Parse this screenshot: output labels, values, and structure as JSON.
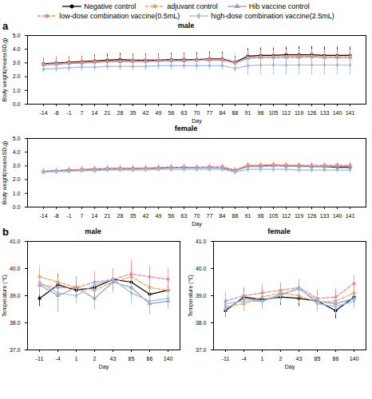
{
  "chart_data": [
    {
      "type": "line",
      "annotation": "a",
      "title": "male",
      "x_label": "Day",
      "y_label": "Body weight(mean±SD,g)",
      "categories": [
        "-14",
        "-8",
        "-1",
        "7",
        "14",
        "21",
        "28",
        "35",
        "42",
        "49",
        "56",
        "63",
        "70",
        "77",
        "84",
        "88",
        "91",
        "98",
        "105",
        "112",
        "119",
        "126",
        "133",
        "140",
        "141"
      ],
      "ylim": [
        0,
        5
      ],
      "yticks": [
        0,
        1,
        2,
        3,
        4,
        5
      ],
      "series": [
        {
          "name": "Negative control",
          "color": "#000000",
          "marker": "circle",
          "line_style": "solid",
          "values": [
            2.95,
            3.0,
            3.05,
            3.1,
            3.15,
            3.2,
            3.25,
            3.2,
            3.2,
            3.2,
            3.25,
            3.25,
            3.25,
            3.3,
            3.3,
            3.05,
            3.5,
            3.55,
            3.55,
            3.6,
            3.6,
            3.6,
            3.55,
            3.55,
            3.55
          ],
          "errors": [
            0.4,
            0.4,
            0.4,
            0.4,
            0.45,
            0.45,
            0.45,
            0.45,
            0.45,
            0.45,
            0.45,
            0.45,
            0.5,
            0.5,
            0.5,
            0.45,
            0.55,
            0.55,
            0.55,
            0.55,
            0.6,
            0.6,
            0.6,
            0.6,
            0.6
          ]
        },
        {
          "name": "adjuvant control",
          "color": "#f5a04b",
          "marker": "square",
          "line_style": "dashed",
          "values": [
            2.9,
            2.95,
            3.0,
            3.05,
            3.1,
            3.1,
            3.15,
            3.15,
            3.15,
            3.15,
            3.2,
            3.2,
            3.2,
            3.25,
            3.25,
            3.0,
            3.4,
            3.45,
            3.45,
            3.45,
            3.5,
            3.5,
            3.45,
            3.45,
            3.45
          ],
          "errors": [
            0.4,
            0.4,
            0.4,
            0.4,
            0.4,
            0.4,
            0.4,
            0.4,
            0.4,
            0.4,
            0.4,
            0.4,
            0.4,
            0.4,
            0.4,
            0.4,
            0.5,
            0.5,
            0.5,
            0.5,
            0.5,
            0.5,
            0.5,
            0.5,
            0.5
          ]
        },
        {
          "name": "Hib vaccine control",
          "color": "#8c9fbf",
          "marker": "triangle",
          "line_style": "solid",
          "values": [
            2.85,
            2.9,
            2.95,
            3.0,
            3.05,
            3.1,
            3.1,
            3.1,
            3.1,
            3.15,
            3.15,
            3.15,
            3.2,
            3.2,
            3.2,
            3.0,
            3.35,
            3.4,
            3.4,
            3.4,
            3.4,
            3.45,
            3.4,
            3.4,
            3.4
          ],
          "errors": [
            0.35,
            0.35,
            0.35,
            0.35,
            0.35,
            0.35,
            0.35,
            0.35,
            0.35,
            0.35,
            0.35,
            0.35,
            0.35,
            0.35,
            0.35,
            0.35,
            0.45,
            0.45,
            0.45,
            0.45,
            0.45,
            0.45,
            0.45,
            0.45,
            0.45
          ]
        },
        {
          "name": "low-dose combination vaccine(0.5mL)",
          "color": "#e8868a",
          "marker": "circle",
          "line_style": "dashed",
          "values": [
            2.9,
            2.95,
            3.0,
            3.0,
            3.05,
            3.1,
            3.1,
            3.15,
            3.15,
            3.15,
            3.2,
            3.2,
            3.2,
            3.2,
            3.25,
            3.0,
            3.35,
            3.4,
            3.4,
            3.45,
            3.45,
            3.45,
            3.4,
            3.4,
            3.4
          ],
          "errors": [
            0.4,
            0.4,
            0.4,
            0.4,
            0.4,
            0.4,
            0.4,
            0.4,
            0.4,
            0.4,
            0.4,
            0.4,
            0.4,
            0.4,
            0.4,
            0.4,
            0.5,
            0.5,
            0.5,
            0.5,
            0.5,
            0.5,
            0.5,
            0.5,
            0.5
          ]
        },
        {
          "name": "high-dose combination vaccine(2.5mL)",
          "color": "#9dbbe0",
          "marker": "diamond",
          "line_style": "solid",
          "values": [
            2.55,
            2.6,
            2.65,
            2.7,
            2.7,
            2.75,
            2.75,
            2.75,
            2.75,
            2.8,
            2.8,
            2.8,
            2.8,
            2.8,
            2.8,
            2.6,
            2.8,
            2.85,
            2.85,
            2.85,
            2.85,
            2.85,
            2.85,
            2.85,
            2.85
          ],
          "errors": [
            0.3,
            0.3,
            0.3,
            0.3,
            0.3,
            0.3,
            0.3,
            0.3,
            0.3,
            0.3,
            0.3,
            0.3,
            0.3,
            0.3,
            0.3,
            0.3,
            0.7,
            0.7,
            0.7,
            0.7,
            0.7,
            0.7,
            0.7,
            0.7,
            0.7
          ]
        }
      ]
    },
    {
      "type": "line",
      "title": "female",
      "x_label": "Day",
      "y_label": "Body weight(mean±SD,g)",
      "categories": [
        "-14",
        "-8",
        "-1",
        "7",
        "14",
        "21",
        "28",
        "35",
        "42",
        "49",
        "56",
        "63",
        "70",
        "77",
        "84",
        "88",
        "91",
        "98",
        "105",
        "112",
        "119",
        "126",
        "133",
        "140",
        "141"
      ],
      "ylim": [
        0,
        5
      ],
      "yticks": [
        0,
        1,
        2,
        3,
        4,
        5
      ],
      "series": [
        {
          "name": "Negative control",
          "color": "#000000",
          "marker": "circle",
          "line_style": "solid",
          "values": [
            2.6,
            2.65,
            2.7,
            2.7,
            2.75,
            2.8,
            2.8,
            2.8,
            2.8,
            2.85,
            2.9,
            2.9,
            2.85,
            2.85,
            2.85,
            2.65,
            3.0,
            3.0,
            3.05,
            3.0,
            3.0,
            2.95,
            2.95,
            2.9,
            2.9
          ],
          "errors": [
            0.2,
            0.2,
            0.2,
            0.2,
            0.2,
            0.2,
            0.2,
            0.2,
            0.2,
            0.2,
            0.2,
            0.2,
            0.2,
            0.2,
            0.2,
            0.2,
            0.2,
            0.2,
            0.2,
            0.2,
            0.2,
            0.2,
            0.2,
            0.2,
            0.2
          ]
        },
        {
          "name": "adjuvant control",
          "color": "#f5a04b",
          "marker": "square",
          "line_style": "dashed",
          "values": [
            2.6,
            2.65,
            2.7,
            2.75,
            2.75,
            2.8,
            2.8,
            2.8,
            2.85,
            2.85,
            2.9,
            2.9,
            2.9,
            2.9,
            2.9,
            2.7,
            3.0,
            3.05,
            3.05,
            3.05,
            3.05,
            3.0,
            3.0,
            3.0,
            3.0
          ],
          "errors": [
            0.2,
            0.2,
            0.2,
            0.2,
            0.2,
            0.2,
            0.2,
            0.2,
            0.2,
            0.2,
            0.2,
            0.2,
            0.2,
            0.2,
            0.2,
            0.2,
            0.2,
            0.2,
            0.2,
            0.2,
            0.2,
            0.2,
            0.2,
            0.2,
            0.2
          ]
        },
        {
          "name": "Hib vaccine control",
          "color": "#8c9fbf",
          "marker": "triangle",
          "line_style": "solid",
          "values": [
            2.55,
            2.6,
            2.65,
            2.7,
            2.7,
            2.75,
            2.75,
            2.75,
            2.8,
            2.8,
            2.85,
            2.85,
            2.85,
            2.85,
            2.85,
            2.65,
            2.95,
            2.95,
            3.0,
            3.0,
            2.95,
            2.95,
            2.95,
            2.95,
            2.95
          ],
          "errors": [
            0.2,
            0.2,
            0.2,
            0.2,
            0.2,
            0.2,
            0.2,
            0.2,
            0.2,
            0.2,
            0.2,
            0.2,
            0.2,
            0.2,
            0.2,
            0.2,
            0.2,
            0.2,
            0.2,
            0.2,
            0.2,
            0.2,
            0.2,
            0.2,
            0.2
          ]
        },
        {
          "name": "low-dose combination vaccine(0.5mL)",
          "color": "#e8868a",
          "marker": "circle",
          "line_style": "dashed",
          "values": [
            2.6,
            2.65,
            2.7,
            2.75,
            2.8,
            2.8,
            2.85,
            2.85,
            2.85,
            2.9,
            2.9,
            2.9,
            2.9,
            2.95,
            2.95,
            2.7,
            3.05,
            3.05,
            3.1,
            3.05,
            3.05,
            3.05,
            3.05,
            3.05,
            3.05
          ],
          "errors": [
            0.2,
            0.2,
            0.2,
            0.2,
            0.2,
            0.2,
            0.2,
            0.2,
            0.2,
            0.2,
            0.2,
            0.2,
            0.2,
            0.2,
            0.2,
            0.2,
            0.2,
            0.2,
            0.2,
            0.2,
            0.2,
            0.2,
            0.2,
            0.2,
            0.2
          ]
        },
        {
          "name": "high-dose combination vaccine(2.5mL)",
          "color": "#9dbbe0",
          "marker": "diamond",
          "line_style": "solid",
          "values": [
            2.55,
            2.6,
            2.6,
            2.65,
            2.65,
            2.7,
            2.7,
            2.7,
            2.7,
            2.75,
            2.75,
            2.75,
            2.75,
            2.75,
            2.75,
            2.55,
            2.75,
            2.75,
            2.75,
            2.75,
            2.7,
            2.7,
            2.7,
            2.7,
            2.7
          ],
          "errors": [
            0.15,
            0.15,
            0.15,
            0.15,
            0.15,
            0.15,
            0.15,
            0.15,
            0.15,
            0.15,
            0.15,
            0.15,
            0.15,
            0.15,
            0.15,
            0.15,
            0.15,
            0.15,
            0.15,
            0.15,
            0.15,
            0.15,
            0.15,
            0.15,
            0.15
          ]
        }
      ]
    },
    {
      "type": "line",
      "annotation": "b",
      "title": "male",
      "x_label": "Day",
      "y_label": "Temperature (℃)",
      "categories": [
        "-11",
        "-4",
        "1",
        "2",
        "43",
        "85",
        "86",
        "140"
      ],
      "ylim": [
        37,
        41
      ],
      "yticks": [
        37,
        38,
        39,
        40,
        41
      ],
      "series": [
        {
          "name": "Negative control",
          "color": "#000000",
          "marker": "circle",
          "line_style": "solid",
          "values": [
            38.9,
            39.4,
            39.2,
            39.3,
            39.6,
            39.5,
            39.05,
            39.2
          ],
          "errors": [
            0.3,
            0.4,
            0.3,
            0.3,
            0.3,
            0.3,
            0.4,
            0.2
          ]
        },
        {
          "name": "adjuvant control",
          "color": "#f5a04b",
          "marker": "square",
          "line_style": "dashed",
          "values": [
            39.7,
            39.5,
            39.3,
            39.2,
            39.5,
            39.7,
            39.3,
            39.2
          ],
          "errors": [
            0.4,
            0.3,
            0.3,
            0.3,
            0.4,
            0.4,
            0.3,
            0.3
          ]
        },
        {
          "name": "Hib vaccine control",
          "color": "#8c9fbf",
          "marker": "triangle",
          "line_style": "solid",
          "values": [
            39.4,
            39.0,
            39.3,
            38.9,
            39.5,
            39.3,
            38.7,
            38.8
          ],
          "errors": [
            0.4,
            0.6,
            0.4,
            0.4,
            0.3,
            0.4,
            0.4,
            0.3
          ]
        },
        {
          "name": "low-dose combination vaccine(0.5mL)",
          "color": "#e8868a",
          "marker": "circle",
          "line_style": "dashed",
          "values": [
            39.4,
            39.3,
            39.3,
            39.5,
            39.6,
            39.8,
            39.7,
            39.6
          ],
          "errors": [
            0.4,
            0.3,
            0.4,
            0.4,
            0.4,
            0.5,
            0.4,
            0.4
          ]
        },
        {
          "name": "high-dose combination vaccine(2.5mL)",
          "color": "#9dbbe0",
          "marker": "diamond",
          "line_style": "solid",
          "values": [
            39.5,
            39.1,
            39.0,
            39.4,
            39.6,
            39.1,
            38.8,
            38.9
          ],
          "errors": [
            0.3,
            0.5,
            0.3,
            0.3,
            0.3,
            0.4,
            0.4,
            0.3
          ]
        }
      ]
    },
    {
      "type": "line",
      "title": "female",
      "x_label": "Day",
      "y_label": "Temperature (℃)",
      "categories": [
        "-11",
        "-4",
        "1",
        "2",
        "43",
        "85",
        "86",
        "140"
      ],
      "ylim": [
        37,
        41
      ],
      "yticks": [
        37,
        38,
        39,
        40,
        41
      ],
      "series": [
        {
          "name": "Negative control",
          "color": "#000000",
          "marker": "circle",
          "line_style": "solid",
          "values": [
            38.45,
            38.95,
            38.85,
            38.95,
            38.9,
            38.8,
            38.45,
            38.95
          ],
          "errors": [
            0.25,
            0.3,
            0.3,
            0.3,
            0.3,
            0.3,
            0.3,
            0.2
          ]
        },
        {
          "name": "adjuvant control",
          "color": "#f5a04b",
          "marker": "square",
          "line_style": "dashed",
          "values": [
            38.6,
            38.7,
            38.95,
            39.1,
            39.0,
            38.75,
            38.8,
            39.1
          ],
          "errors": [
            0.3,
            0.3,
            0.3,
            0.3,
            0.3,
            0.3,
            0.3,
            0.3
          ]
        },
        {
          "name": "Hib vaccine control",
          "color": "#8c9fbf",
          "marker": "triangle",
          "line_style": "solid",
          "values": [
            38.5,
            38.9,
            38.8,
            39.05,
            39.25,
            38.8,
            38.7,
            38.9
          ],
          "errors": [
            0.3,
            0.3,
            0.3,
            0.3,
            0.3,
            0.3,
            0.3,
            0.3
          ]
        },
        {
          "name": "low-dose combination vaccine(0.5mL)",
          "color": "#e8868a",
          "marker": "circle",
          "line_style": "dashed",
          "values": [
            38.8,
            39.0,
            39.1,
            39.2,
            39.3,
            38.9,
            38.95,
            39.45
          ],
          "errors": [
            0.3,
            0.3,
            0.3,
            0.3,
            0.3,
            0.3,
            0.3,
            0.3
          ]
        },
        {
          "name": "high-dose combination vaccine(2.5mL)",
          "color": "#9dbbe0",
          "marker": "diamond",
          "line_style": "solid",
          "values": [
            38.7,
            38.8,
            38.8,
            39.0,
            39.3,
            38.7,
            38.6,
            38.8
          ],
          "errors": [
            0.3,
            0.3,
            0.3,
            0.3,
            0.3,
            0.3,
            0.3,
            0.3
          ]
        }
      ]
    }
  ]
}
